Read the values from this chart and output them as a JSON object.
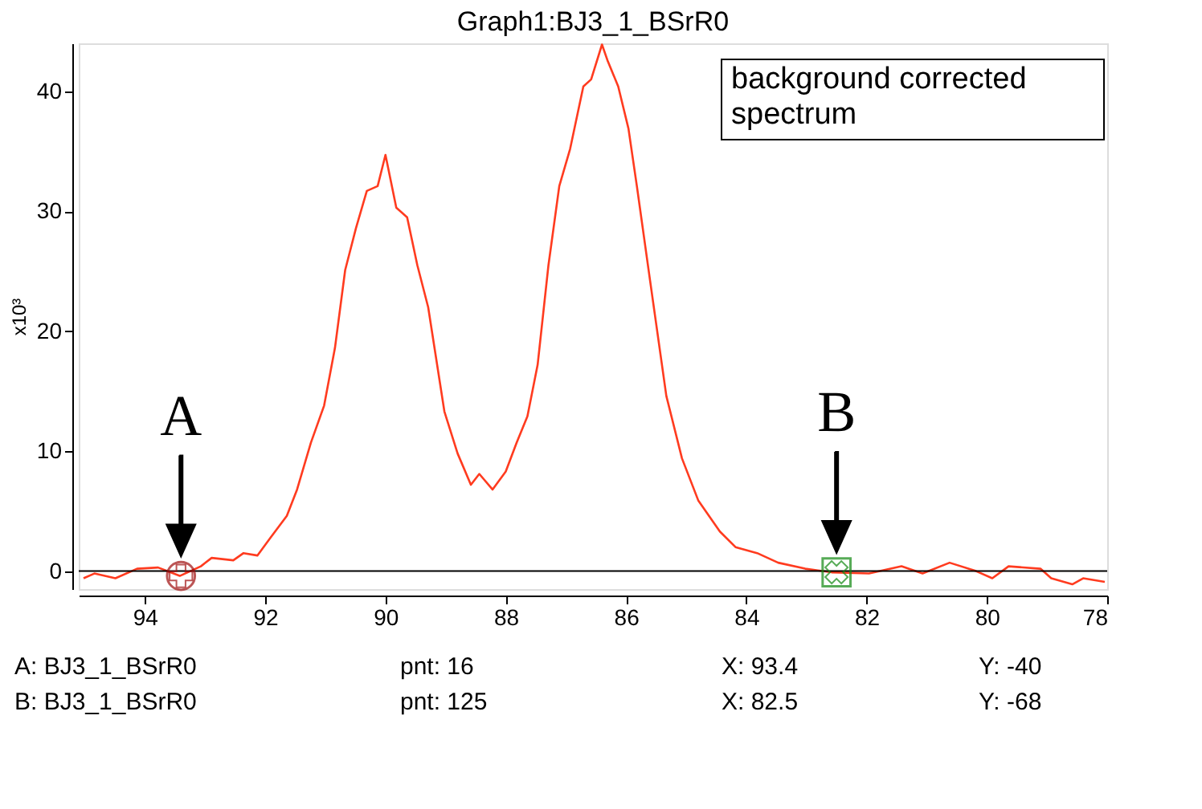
{
  "chart_data": {
    "type": "line",
    "title": "Graph1:BJ3_1_BSrR0",
    "ylabel": "x10³",
    "x": [
      95.02,
      94.84,
      94.49,
      94.13,
      93.78,
      93.42,
      93.07,
      92.89,
      92.53,
      92.36,
      92.13,
      91.91,
      91.64,
      91.47,
      91.24,
      91.02,
      90.84,
      90.67,
      90.49,
      90.31,
      90.13,
      90.0,
      89.82,
      89.64,
      89.47,
      89.29,
      89.02,
      88.8,
      88.58,
      88.44,
      88.22,
      88.0,
      87.82,
      87.64,
      87.47,
      87.29,
      87.11,
      86.93,
      86.71,
      86.58,
      86.4,
      86.31,
      86.13,
      85.96,
      85.82,
      85.6,
      85.33,
      85.07,
      84.8,
      84.44,
      84.18,
      83.82,
      83.47,
      83.02,
      82.58,
      81.96,
      81.42,
      81.07,
      80.62,
      80.18,
      79.91,
      79.64,
      79.11,
      78.93,
      78.58,
      78.4,
      78.04
    ],
    "series": [
      {
        "color": "#ff3b1f",
        "values": [
          -0.6,
          -0.2,
          -0.6,
          0.2,
          0.3,
          -0.4,
          0.4,
          1.1,
          0.9,
          1.5,
          1.3,
          2.8,
          4.6,
          6.8,
          10.7,
          13.8,
          18.6,
          25.1,
          28.6,
          31.7,
          32.1,
          34.7,
          30.3,
          29.5,
          25.5,
          22.0,
          13.3,
          9.8,
          7.2,
          8.1,
          6.8,
          8.3,
          10.7,
          12.9,
          17.2,
          25.5,
          32.1,
          35.2,
          40.4,
          41.0,
          43.9,
          42.6,
          40.4,
          36.9,
          32.1,
          24.2,
          14.6,
          9.4,
          5.9,
          3.3,
          2.0,
          1.5,
          0.7,
          0.2,
          -0.1,
          -0.2,
          0.4,
          -0.2,
          0.7,
          0.0,
          -0.6,
          0.4,
          0.2,
          -0.6,
          -1.1,
          -0.6,
          -0.9
        ]
      }
    ],
    "xlim": [
      95.1,
      78
    ],
    "ylim": [
      -1.5,
      44
    ],
    "xticks": [
      94,
      92,
      90,
      88,
      86,
      84,
      82,
      80,
      78
    ],
    "yticks": [
      0,
      10,
      20,
      30,
      40
    ],
    "ref_lines": [
      {
        "axis": "y",
        "value": 0,
        "color": "#000000"
      }
    ],
    "annotations": [
      "background corrected spectrum",
      {
        "text": "A",
        "x": 93.4,
        "y": -0.4
      },
      {
        "text": "B",
        "x": 82.5,
        "y": -0.1
      },
      "A: BJ3_1_BSrR0",
      "pnt: 16",
      "X: 93.4",
      "Y: -40",
      "B: BJ3_1_BSrR0",
      "pnt: 125",
      "X: 82.5",
      "Y: -68"
    ],
    "grid": false,
    "marker": "none",
    "line_style": "solid"
  }
}
